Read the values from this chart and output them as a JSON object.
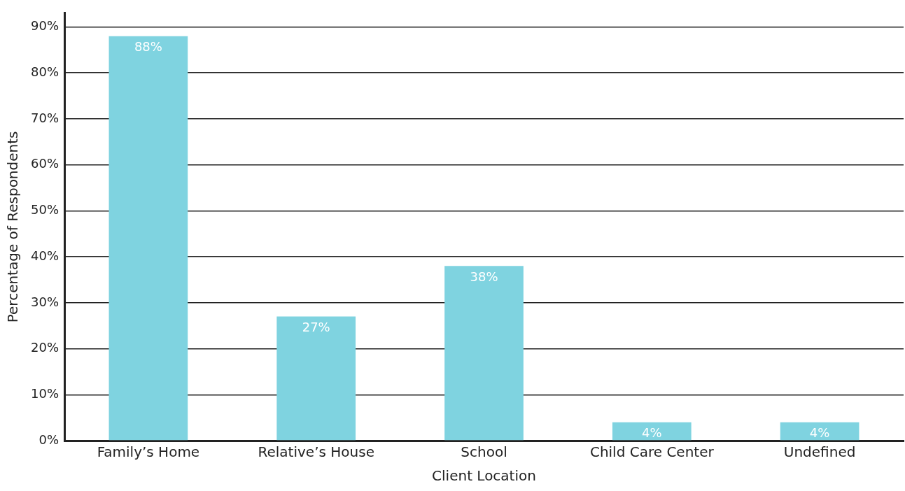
{
  "chart_data": {
    "type": "bar",
    "xlabel": "Client Location",
    "ylabel": "Percentage of Respondents",
    "categories": [
      "Family’s Home",
      "Relative’s House",
      "School",
      "Child Care Center",
      "Undefined"
    ],
    "values": [
      88,
      27,
      38,
      4,
      4
    ],
    "value_labels": [
      "88%",
      "27%",
      "38%",
      "4%",
      "4%"
    ],
    "color": "#7fd3e0",
    "ylim": [
      0,
      93
    ],
    "yticks": [
      {
        "value": 0,
        "label": "0%"
      },
      {
        "value": 10,
        "label": "10%"
      },
      {
        "value": 20,
        "label": "20%"
      },
      {
        "value": 30,
        "label": "30%"
      },
      {
        "value": 40,
        "label": "40%"
      },
      {
        "value": 50,
        "label": "50%"
      },
      {
        "value": 60,
        "label": "60%"
      },
      {
        "value": 70,
        "label": "70%"
      },
      {
        "value": 80,
        "label": "80%"
      },
      {
        "value": 90,
        "label": "90%"
      }
    ],
    "grid": "y",
    "legend": false
  }
}
